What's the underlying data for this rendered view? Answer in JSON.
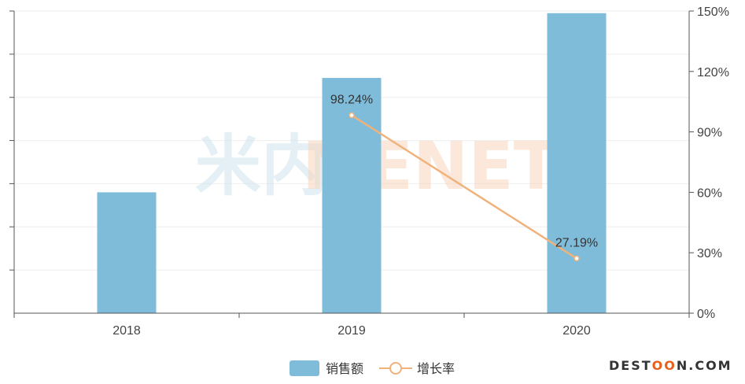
{
  "watermark": {
    "left": "米内",
    "right": "MENET"
  },
  "brand": {
    "part1": "DEST",
    "part2": "OO",
    "part3": "N.COM"
  },
  "chart_data": {
    "type": "bar+line",
    "categories": [
      "2018",
      "2019",
      "2020"
    ],
    "series": [
      {
        "name": "销售额",
        "type": "bar",
        "axis": "left",
        "color": "#7fbcd9",
        "values": [
          56,
          109,
          139
        ]
      },
      {
        "name": "增长率",
        "type": "line",
        "axis": "right",
        "color": "#f0b27a",
        "values": [
          null,
          98.24,
          27.19
        ],
        "labels": [
          "",
          "98.24%",
          "27.19%"
        ]
      }
    ],
    "y_left": {
      "range": [
        0,
        140
      ],
      "tick_count": 7
    },
    "y_right": {
      "range": [
        0,
        150
      ],
      "ticks": [
        "0%",
        "30%",
        "60%",
        "90%",
        "120%",
        "150%"
      ]
    },
    "grid": true,
    "legend": "bottom-center"
  }
}
